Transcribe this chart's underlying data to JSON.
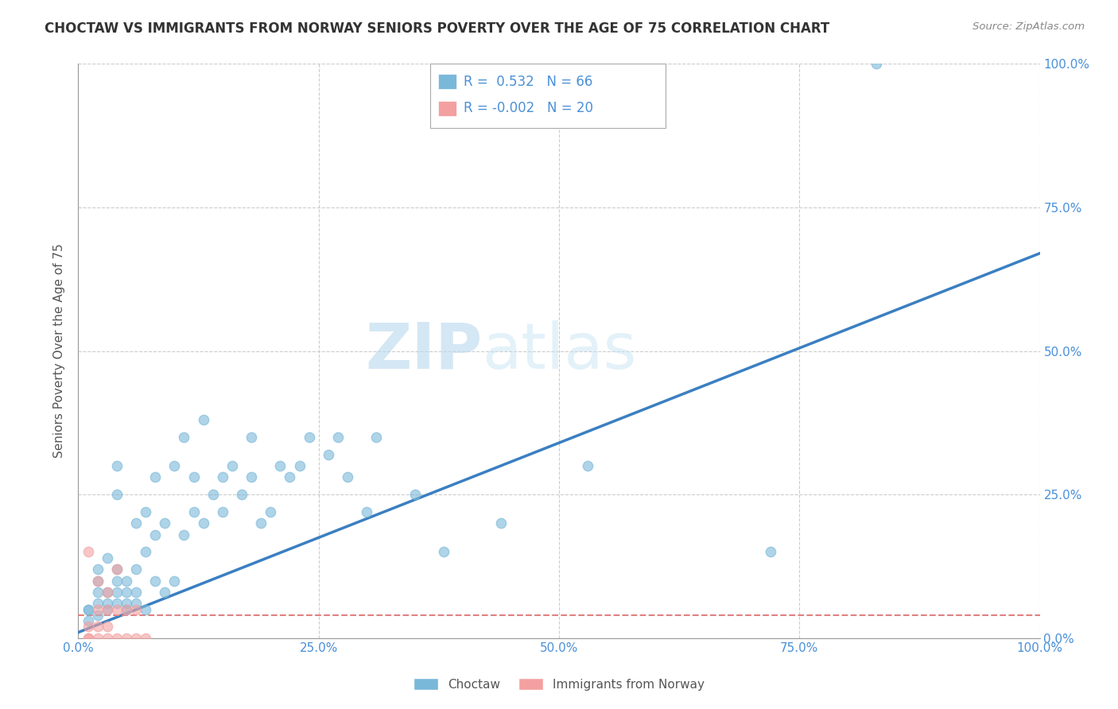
{
  "title": "CHOCTAW VS IMMIGRANTS FROM NORWAY SENIORS POVERTY OVER THE AGE OF 75 CORRELATION CHART",
  "source": "Source: ZipAtlas.com",
  "ylabel": "Seniors Poverty Over the Age of 75",
  "choctaw_R": 0.532,
  "choctaw_N": 66,
  "norway_R": -0.002,
  "norway_N": 20,
  "choctaw_color": "#7ab8d9",
  "norway_color": "#f4a0a0",
  "choctaw_line_color": "#3a7fc1",
  "norway_line_color": "#e08080",
  "background_color": "#ffffff",
  "watermark_color": "#daeef7",
  "xlim": [
    0,
    1.0
  ],
  "ylim": [
    0,
    1.0
  ],
  "xticks": [
    0.0,
    0.25,
    0.5,
    0.75,
    1.0
  ],
  "yticks": [
    0.0,
    0.25,
    0.5,
    0.75,
    1.0
  ],
  "xticklabels": [
    "0.0%",
    "25.0%",
    "50.0%",
    "75.0%",
    "100.0%"
  ],
  "yticklabels_right": [
    "0.0%",
    "25.0%",
    "50.0%",
    "75.0%",
    "100.0%"
  ],
  "choctaw_scatter_x": [
    0.01,
    0.01,
    0.01,
    0.02,
    0.02,
    0.02,
    0.02,
    0.02,
    0.03,
    0.03,
    0.03,
    0.03,
    0.04,
    0.04,
    0.04,
    0.04,
    0.04,
    0.04,
    0.05,
    0.05,
    0.05,
    0.05,
    0.06,
    0.06,
    0.06,
    0.06,
    0.07,
    0.07,
    0.07,
    0.08,
    0.08,
    0.08,
    0.09,
    0.09,
    0.1,
    0.1,
    0.11,
    0.11,
    0.12,
    0.12,
    0.13,
    0.13,
    0.14,
    0.15,
    0.15,
    0.16,
    0.17,
    0.18,
    0.18,
    0.19,
    0.2,
    0.21,
    0.22,
    0.23,
    0.24,
    0.26,
    0.27,
    0.28,
    0.3,
    0.31,
    0.35,
    0.38,
    0.44,
    0.53,
    0.72,
    0.83
  ],
  "choctaw_scatter_y": [
    0.05,
    0.05,
    0.03,
    0.08,
    0.06,
    0.04,
    0.1,
    0.12,
    0.06,
    0.08,
    0.05,
    0.14,
    0.06,
    0.08,
    0.1,
    0.12,
    0.25,
    0.3,
    0.05,
    0.06,
    0.08,
    0.1,
    0.06,
    0.08,
    0.12,
    0.2,
    0.05,
    0.15,
    0.22,
    0.1,
    0.18,
    0.28,
    0.08,
    0.2,
    0.1,
    0.3,
    0.18,
    0.35,
    0.22,
    0.28,
    0.2,
    0.38,
    0.25,
    0.28,
    0.22,
    0.3,
    0.25,
    0.28,
    0.35,
    0.2,
    0.22,
    0.3,
    0.28,
    0.3,
    0.35,
    0.32,
    0.35,
    0.28,
    0.22,
    0.35,
    0.25,
    0.15,
    0.2,
    0.3,
    0.15,
    1.0
  ],
  "norway_scatter_x": [
    0.01,
    0.01,
    0.01,
    0.01,
    0.02,
    0.02,
    0.02,
    0.02,
    0.03,
    0.03,
    0.03,
    0.03,
    0.04,
    0.04,
    0.04,
    0.05,
    0.05,
    0.06,
    0.06,
    0.07
  ],
  "norway_scatter_y": [
    0.0,
    0.0,
    0.02,
    0.15,
    0.0,
    0.02,
    0.05,
    0.1,
    0.0,
    0.02,
    0.05,
    0.08,
    0.0,
    0.05,
    0.12,
    0.0,
    0.05,
    0.0,
    0.05,
    0.0
  ],
  "choctaw_line_x": [
    0.0,
    1.0
  ],
  "choctaw_line_y": [
    0.01,
    0.67
  ],
  "norway_line_x": [
    0.0,
    1.0
  ],
  "norway_line_y": [
    0.04,
    0.04
  ],
  "legend_R1_text": "R =  0.532   N = 66",
  "legend_R2_text": "R = -0.002   N = 20",
  "legend_label1": "Choctaw",
  "legend_label2": "Immigrants from Norway",
  "title_fontsize": 12,
  "tick_fontsize": 11,
  "tick_color": "#4a90d9"
}
